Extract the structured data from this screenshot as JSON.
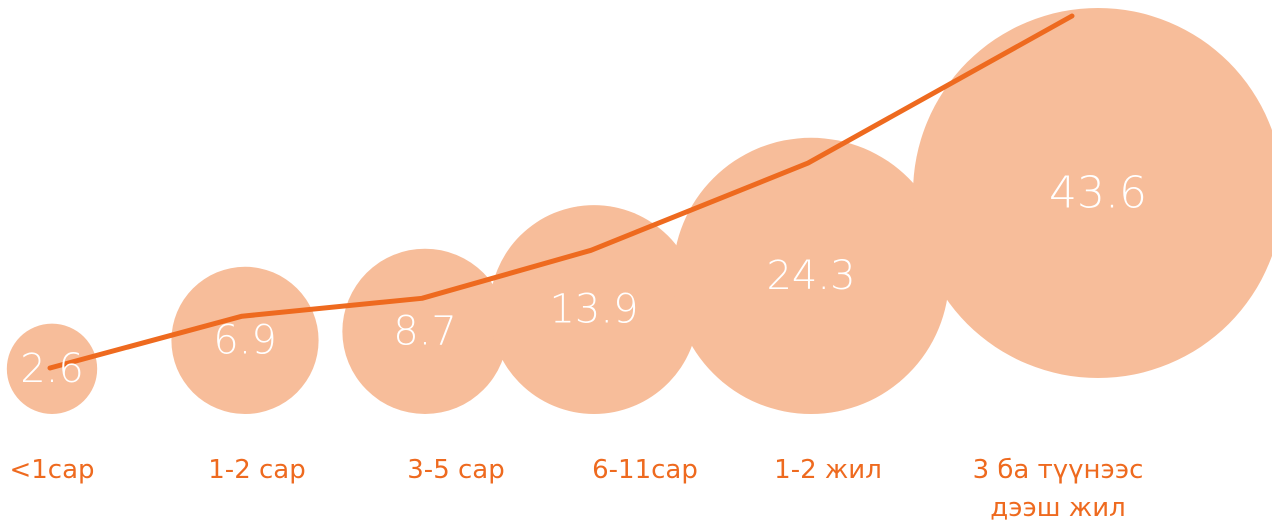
{
  "chart_data": {
    "type": "bubble-line",
    "categories": [
      [
        "<1сар"
      ],
      [
        "1-2 сар"
      ],
      [
        "3-5 сар"
      ],
      [
        "6-11сар"
      ],
      [
        "1-2 жил"
      ],
      [
        "3 ба түүнээс",
        "дээш жил"
      ]
    ],
    "values": [
      2.6,
      6.9,
      8.7,
      13.9,
      24.3,
      43.6
    ],
    "value_labels": [
      "2.6",
      "6.9",
      "8.7",
      "13.9",
      "24.3",
      "43.6"
    ],
    "title": "",
    "xlabel": "",
    "ylabel": "",
    "grid": false,
    "legend": "none"
  },
  "colors": {
    "bubble": "#f7bd9a",
    "line": "#ee6a1f",
    "category_text": "#ee6a1f",
    "value_text": "#ffffff"
  }
}
